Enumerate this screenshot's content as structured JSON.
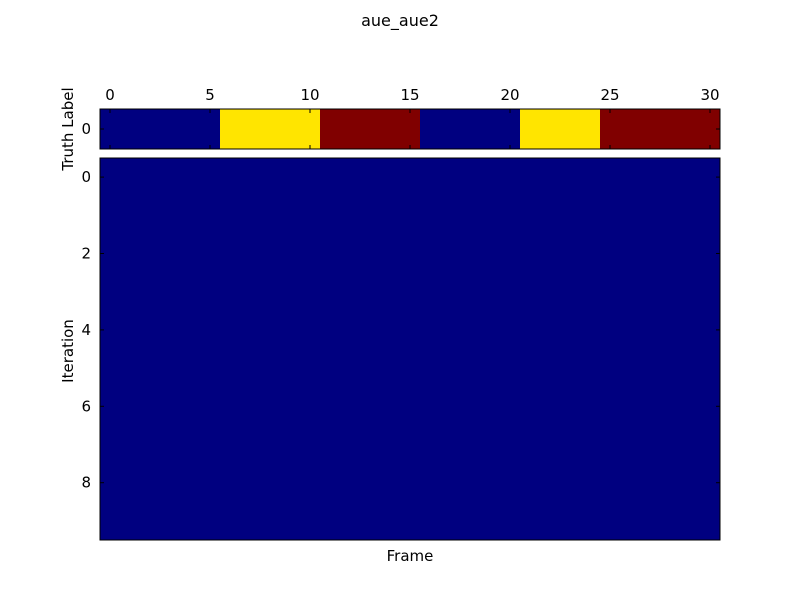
{
  "chart_data": {
    "type": "heatmap",
    "title": "aue_aue2",
    "colors": {
      "dark_blue": "#000080",
      "yellow": "#FFE500",
      "dark_red": "#800000",
      "axis": "#000000",
      "background": "#FFFFFF"
    },
    "truth": {
      "ylabel": "Truth Label",
      "x_ticks": [
        "0",
        "5",
        "10",
        "15",
        "20",
        "25",
        "30"
      ],
      "y_ticks": [
        "0"
      ],
      "xlim": [
        -0.5,
        30.5
      ],
      "ylim": [
        -0.5,
        0.5
      ],
      "segments": [
        {
          "start": -0.5,
          "end": 5.5,
          "color": "dark_blue"
        },
        {
          "start": 5.5,
          "end": 10.5,
          "color": "yellow"
        },
        {
          "start": 10.5,
          "end": 15.5,
          "color": "dark_red"
        },
        {
          "start": 15.5,
          "end": 20.5,
          "color": "dark_blue"
        },
        {
          "start": 20.5,
          "end": 24.5,
          "color": "yellow"
        },
        {
          "start": 24.5,
          "end": 30.5,
          "color": "dark_red"
        }
      ]
    },
    "iterations": {
      "xlabel": "Frame",
      "ylabel": "Iteration",
      "y_ticks": [
        "0",
        "2",
        "4",
        "6",
        "8"
      ],
      "xlim": [
        -0.5,
        30.5
      ],
      "ylim": [
        -0.5,
        9.5
      ],
      "fill_color": "dark_blue"
    }
  }
}
